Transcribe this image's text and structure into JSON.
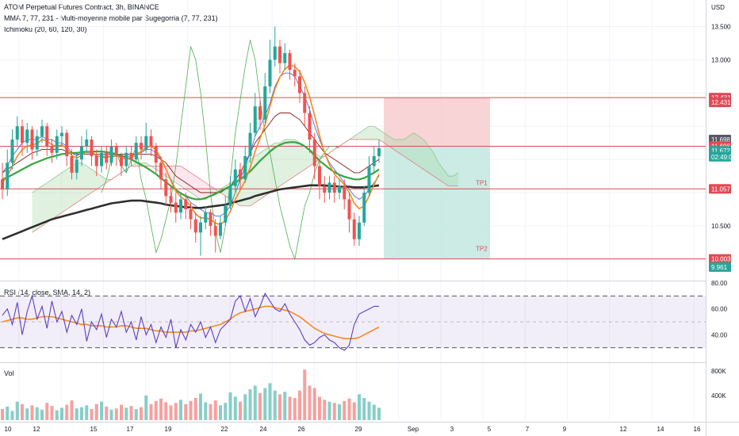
{
  "header": {
    "symbol_line": "ATOM Perpetual Futures Contract, 3h, BINANCE",
    "mma_line": "MMA 7, 77, 231 - Multi-moyenne mobile par Sugegorria (7, 77, 231)",
    "ichimoku_line": "Ichimoku (20, 60, 120, 30)"
  },
  "rsi_label": "RSI (14, close, SMA, 14, 2)",
  "vol_label": "Vol",
  "currency": "USD",
  "colors": {
    "bull": "#26a69a",
    "bear": "#ef5350",
    "ma_fast": "#f5891f",
    "ma_mid": "#3aa341",
    "ma_slow": "#2f2f2f",
    "tenkan": "#4a6fd8",
    "kijun": "#8a1c1c",
    "chikou": "#4caf50",
    "rsi": "#5b3fbf",
    "rsi_ma": "#f5891f",
    "level": "#e04a55",
    "stop_zone": "#f7c9cc",
    "target_zone": "#bfe6df"
  },
  "price_axis": {
    "ticks": [
      "13.500",
      "13.000",
      "10.500"
    ],
    "badges": [
      {
        "text": "12.431",
        "price": 12.431,
        "color": "#e04a55"
      },
      {
        "text": "12.431",
        "price": 12.36,
        "color": "#e04a55"
      },
      {
        "text": "11.698",
        "price": 11.8,
        "color": "#555a63"
      },
      {
        "text": "11.698",
        "price": 11.7,
        "color": "#e04a55"
      },
      {
        "text": "11.672",
        "price": 11.63,
        "color": "#26a69a"
      },
      {
        "text": "02:49:09",
        "price": 11.54,
        "color": "#26a69a"
      },
      {
        "text": "11.057",
        "price": 11.057,
        "color": "#e04a55"
      },
      {
        "text": "10.003",
        "price": 10.003,
        "color": "#e04a55"
      },
      {
        "text": "9.961",
        "price": 9.88,
        "color": "#26a69a"
      }
    ]
  },
  "rsi_axis": {
    "ticks": [
      "80.00",
      "60.00",
      "40.00"
    ]
  },
  "vol_axis": {
    "ticks": [
      "800K",
      "400K"
    ]
  },
  "time_axis": [
    "10",
    "12",
    "15",
    "17",
    "19",
    "22",
    "24",
    "26",
    "29",
    "Sep",
    "3",
    "5",
    "7",
    "9",
    "12",
    "14",
    "16"
  ],
  "annotations": {
    "tp1": "TP1",
    "tp2": "TP2"
  },
  "chart_data": {
    "type": "candlestick",
    "title": "ATOM Perpetual Futures Contract, 3h, BINANCE",
    "price_ylim": [
      9.7,
      13.9
    ],
    "rsi_ylim": [
      20,
      80
    ],
    "rsi_bands": [
      70,
      50,
      30
    ],
    "vol_ylim": [
      0,
      900000
    ],
    "levels": [
      12.431,
      11.698,
      11.057,
      10.003
    ],
    "position": {
      "entry": 11.698,
      "stop": 12.431,
      "tp1": 11.057,
      "tp2": 10.003
    },
    "candles": [
      [
        11.2,
        11.05,
        11.45,
        10.9
      ],
      [
        11.05,
        11.45,
        11.65,
        10.95
      ],
      [
        11.45,
        11.8,
        11.95,
        11.35
      ],
      [
        11.8,
        12.0,
        12.15,
        11.7
      ],
      [
        12.0,
        11.75,
        12.1,
        11.55
      ],
      [
        11.75,
        11.95,
        12.05,
        11.6
      ],
      [
        11.95,
        11.65,
        12.0,
        11.5
      ],
      [
        11.65,
        11.85,
        11.95,
        11.55
      ],
      [
        11.85,
        12.0,
        12.1,
        11.75
      ],
      [
        12.0,
        11.7,
        12.05,
        11.55
      ],
      [
        11.7,
        11.6,
        11.8,
        11.45
      ],
      [
        11.6,
        11.85,
        11.95,
        11.5
      ],
      [
        11.85,
        11.9,
        12.0,
        11.7
      ],
      [
        11.9,
        11.55,
        11.95,
        11.4
      ],
      [
        11.55,
        11.3,
        11.65,
        11.2
      ],
      [
        11.3,
        11.5,
        11.6,
        11.2
      ],
      [
        11.5,
        11.7,
        11.85,
        11.4
      ],
      [
        11.7,
        11.8,
        11.95,
        11.6
      ],
      [
        11.8,
        11.55,
        11.85,
        11.4
      ],
      [
        11.55,
        11.4,
        11.65,
        11.25
      ],
      [
        11.4,
        11.6,
        11.7,
        11.3
      ],
      [
        11.6,
        11.45,
        11.7,
        11.35
      ],
      [
        11.45,
        11.7,
        11.8,
        11.4
      ],
      [
        11.7,
        11.55,
        11.75,
        11.4
      ],
      [
        11.55,
        11.4,
        11.6,
        11.25
      ],
      [
        11.4,
        11.6,
        11.7,
        11.3
      ],
      [
        11.6,
        11.5,
        11.7,
        11.4
      ],
      [
        11.5,
        11.75,
        11.85,
        11.45
      ],
      [
        11.75,
        11.65,
        11.85,
        11.5
      ],
      [
        11.65,
        11.85,
        12.05,
        11.6
      ],
      [
        11.85,
        11.7,
        11.95,
        11.55
      ],
      [
        11.7,
        11.45,
        11.75,
        11.3
      ],
      [
        11.45,
        11.2,
        11.55,
        11.05
      ],
      [
        11.2,
        10.95,
        11.3,
        10.8
      ],
      [
        10.95,
        10.85,
        11.1,
        10.7
      ],
      [
        10.85,
        10.7,
        11.0,
        10.55
      ],
      [
        10.7,
        10.9,
        11.0,
        10.6
      ],
      [
        10.9,
        10.75,
        11.0,
        10.6
      ],
      [
        10.75,
        10.6,
        10.85,
        10.45
      ],
      [
        10.6,
        10.4,
        10.7,
        10.25
      ],
      [
        10.4,
        10.55,
        10.65,
        10.05
      ],
      [
        10.55,
        10.7,
        10.8,
        10.45
      ],
      [
        10.7,
        10.5,
        10.75,
        10.35
      ],
      [
        10.5,
        10.35,
        10.6,
        10.1
      ],
      [
        10.35,
        10.55,
        10.65,
        10.3
      ],
      [
        10.55,
        10.8,
        10.95,
        10.5
      ],
      [
        10.8,
        11.1,
        11.25,
        10.75
      ],
      [
        11.1,
        11.35,
        11.5,
        11.0
      ],
      [
        11.35,
        11.2,
        11.45,
        11.05
      ],
      [
        11.2,
        11.55,
        11.7,
        11.15
      ],
      [
        11.55,
        11.9,
        12.05,
        11.45
      ],
      [
        11.9,
        12.3,
        12.5,
        11.85
      ],
      [
        12.3,
        12.1,
        12.4,
        11.95
      ],
      [
        12.1,
        12.6,
        12.8,
        12.05
      ],
      [
        12.6,
        13.0,
        13.3,
        12.5
      ],
      [
        13.0,
        13.2,
        13.5,
        12.9
      ],
      [
        13.2,
        12.95,
        13.3,
        12.8
      ],
      [
        12.95,
        13.1,
        13.25,
        12.85
      ],
      [
        13.1,
        12.85,
        13.15,
        12.7
      ],
      [
        12.85,
        12.75,
        12.95,
        12.6
      ],
      [
        12.75,
        12.5,
        12.85,
        12.35
      ],
      [
        12.5,
        12.2,
        12.6,
        12.0
      ],
      [
        12.2,
        11.8,
        12.3,
        11.6
      ],
      [
        11.8,
        11.4,
        11.9,
        11.2
      ],
      [
        11.4,
        11.1,
        11.5,
        10.9
      ],
      [
        11.1,
        11.0,
        11.25,
        10.85
      ],
      [
        11.0,
        11.15,
        11.25,
        10.9
      ],
      [
        11.15,
        11.0,
        11.25,
        10.85
      ],
      [
        11.0,
        11.1,
        11.2,
        10.9
      ],
      [
        11.1,
        10.9,
        11.2,
        10.75
      ],
      [
        10.9,
        10.6,
        11.0,
        10.4
      ],
      [
        10.6,
        10.3,
        10.7,
        10.2
      ],
      [
        10.3,
        10.55,
        10.65,
        10.2
      ],
      [
        10.55,
        11.0,
        11.1,
        10.5
      ],
      [
        11.0,
        11.4,
        11.55,
        10.95
      ],
      [
        11.4,
        11.55,
        11.7,
        11.3
      ],
      [
        11.55,
        11.67,
        11.8,
        11.45
      ]
    ],
    "ma_fast": [
      11.15,
      11.25,
      11.4,
      11.55,
      11.65,
      11.7,
      11.72,
      11.74,
      11.8,
      11.78,
      11.72,
      11.7,
      11.72,
      11.66,
      11.56,
      11.52,
      11.56,
      11.62,
      11.62,
      11.56,
      11.54,
      11.52,
      11.56,
      11.56,
      11.52,
      11.52,
      11.52,
      11.58,
      11.62,
      11.68,
      11.7,
      11.64,
      11.52,
      11.36,
      11.18,
      11.02,
      10.94,
      10.88,
      10.8,
      10.68,
      10.62,
      10.62,
      10.6,
      10.54,
      10.52,
      10.58,
      10.72,
      10.9,
      11.04,
      11.18,
      11.38,
      11.62,
      11.82,
      12.02,
      12.3,
      12.56,
      12.74,
      12.86,
      12.92,
      12.9,
      12.82,
      12.66,
      12.44,
      12.16,
      11.86,
      11.6,
      11.42,
      11.28,
      11.2,
      11.12,
      11.0,
      10.84,
      10.76,
      10.8,
      10.95,
      11.12,
      11.28
    ],
    "ma_mid": [
      11.2,
      11.23,
      11.27,
      11.31,
      11.35,
      11.39,
      11.43,
      11.46,
      11.49,
      11.52,
      11.54,
      11.56,
      11.58,
      11.59,
      11.6,
      11.6,
      11.61,
      11.62,
      11.62,
      11.62,
      11.62,
      11.61,
      11.6,
      11.58,
      11.56,
      11.53,
      11.5,
      11.46,
      11.42,
      11.38,
      11.33,
      11.28,
      11.22,
      11.16,
      11.1,
      11.04,
      10.99,
      10.95,
      10.92,
      10.9,
      10.9,
      10.92,
      10.95,
      10.98,
      11.02,
      11.06,
      11.1,
      11.15,
      11.2,
      11.26,
      11.32,
      11.4,
      11.48,
      11.55,
      11.62,
      11.68,
      11.72,
      11.75,
      11.76,
      11.76,
      11.74,
      11.7,
      11.64,
      11.56,
      11.48,
      11.42,
      11.36,
      11.31,
      11.27,
      11.24,
      11.22,
      11.2,
      11.2,
      11.22,
      11.26,
      11.3,
      11.35
    ],
    "ma_slow": [
      10.3,
      10.33,
      10.36,
      10.39,
      10.42,
      10.45,
      10.48,
      10.51,
      10.54,
      10.57,
      10.6,
      10.62,
      10.64,
      10.66,
      10.68,
      10.7,
      10.72,
      10.74,
      10.76,
      10.78,
      10.8,
      10.82,
      10.84,
      10.85,
      10.86,
      10.87,
      10.88,
      10.88,
      10.88,
      10.87,
      10.86,
      10.85,
      10.84,
      10.82,
      10.81,
      10.8,
      10.79,
      10.78,
      10.78,
      10.77,
      10.77,
      10.78,
      10.79,
      10.8,
      10.81,
      10.82,
      10.84,
      10.86,
      10.88,
      10.9,
      10.92,
      10.95,
      10.97,
      10.99,
      11.01,
      11.03,
      11.05,
      11.06,
      11.07,
      11.08,
      11.09,
      11.1,
      11.11,
      11.11,
      11.11,
      11.11,
      11.1,
      11.1,
      11.09,
      11.09,
      11.09,
      11.08,
      11.08,
      11.08,
      11.09,
      11.1,
      11.11
    ],
    "rsi": [
      55,
      60,
      48,
      65,
      40,
      58,
      70,
      52,
      62,
      45,
      66,
      50,
      58,
      42,
      55,
      48,
      60,
      35,
      50,
      44,
      56,
      38,
      52,
      46,
      58,
      42,
      50,
      36,
      54,
      40,
      48,
      34,
      46,
      38,
      52,
      30,
      44,
      36,
      48,
      42,
      50,
      38,
      46,
      34,
      44,
      48,
      52,
      66,
      70,
      58,
      68,
      54,
      62,
      72,
      66,
      60,
      58,
      64,
      56,
      50,
      44,
      36,
      32,
      34,
      38,
      40,
      36,
      34,
      30,
      28,
      32,
      48,
      56,
      58,
      60,
      62,
      62
    ],
    "rsi_ma": [
      50,
      51,
      52,
      53,
      53,
      52,
      52,
      53,
      54,
      54,
      54,
      53,
      52,
      51,
      50,
      49,
      48,
      48,
      47,
      47,
      47,
      46,
      46,
      46,
      47,
      47,
      46,
      45,
      45,
      45,
      44,
      43,
      43,
      42,
      42,
      42,
      42,
      42,
      43,
      43,
      44,
      45,
      46,
      47,
      48,
      50,
      52,
      55,
      57,
      58,
      59,
      60,
      61,
      62,
      62,
      61,
      60,
      59,
      58,
      56,
      54,
      51,
      48,
      45,
      43,
      41,
      40,
      39,
      38,
      37,
      37,
      37,
      38,
      40,
      42,
      44,
      46
    ],
    "volume": [
      180000,
      220000,
      150000,
      300000,
      260000,
      190000,
      240000,
      210000,
      170000,
      280000,
      230000,
      160000,
      200000,
      250000,
      320000,
      190000,
      210000,
      240000,
      180000,
      260000,
      300000,
      220000,
      170000,
      190000,
      250000,
      200000,
      230000,
      180000,
      210000,
      400000,
      260000,
      310000,
      350000,
      290000,
      240000,
      280000,
      330000,
      260000,
      310000,
      360000,
      430000,
      290000,
      260000,
      320000,
      240000,
      280000,
      450000,
      380000,
      300000,
      420000,
      500000,
      560000,
      440000,
      520000,
      600000,
      480000,
      420000,
      460000,
      380000,
      360000,
      480000,
      820000,
      560000,
      520000,
      380000,
      330000,
      300000,
      280000,
      260000,
      310000,
      350000,
      290000,
      420000,
      360000,
      300000,
      250000,
      200000
    ],
    "ichimoku": {
      "tenkan": [
        11.3,
        11.4,
        11.55,
        11.65,
        11.75,
        11.8,
        11.8,
        11.8,
        11.85,
        11.8,
        11.8,
        11.75,
        11.75,
        11.7,
        11.6,
        11.55,
        11.6,
        11.6,
        11.6,
        11.55,
        11.55,
        11.55,
        11.55,
        11.55,
        11.55,
        11.55,
        11.55,
        11.6,
        11.6,
        11.65,
        11.65,
        11.6,
        11.5,
        11.35,
        11.2,
        11.05,
        11.0,
        10.95,
        10.85,
        10.8,
        10.75,
        10.7,
        10.7,
        10.65,
        10.65,
        10.7,
        10.8,
        11.0,
        11.2,
        11.4,
        11.6,
        11.85,
        12.0,
        12.15,
        12.35,
        12.6,
        12.75,
        12.8,
        12.8,
        12.75,
        12.6,
        12.45,
        12.25,
        12.0,
        11.8,
        11.6,
        11.45,
        11.35,
        11.25,
        11.15,
        11.05,
        10.95,
        10.9,
        10.95,
        11.05,
        11.15,
        11.25
      ],
      "kijun": [
        11.3,
        11.35,
        11.4,
        11.45,
        11.5,
        11.55,
        11.6,
        11.62,
        11.65,
        11.65,
        11.65,
        11.65,
        11.65,
        11.62,
        11.6,
        11.58,
        11.58,
        11.58,
        11.58,
        11.58,
        11.58,
        11.58,
        11.58,
        11.58,
        11.58,
        11.58,
        11.58,
        11.58,
        11.58,
        11.58,
        11.58,
        11.55,
        11.5,
        11.45,
        11.35,
        11.25,
        11.2,
        11.15,
        11.1,
        11.05,
        11.0,
        11.0,
        11.0,
        11.0,
        11.0,
        11.05,
        11.1,
        11.2,
        11.3,
        11.45,
        11.6,
        11.75,
        11.85,
        11.95,
        12.05,
        12.15,
        12.2,
        12.2,
        12.2,
        12.15,
        12.1,
        12.0,
        11.9,
        11.8,
        11.7,
        11.6,
        11.55,
        11.5,
        11.45,
        11.4,
        11.35,
        11.3,
        11.3,
        11.35,
        11.4,
        11.45,
        11.5
      ],
      "span_a": [
        11.0,
        11.05,
        11.1,
        11.15,
        11.2,
        11.25,
        11.3,
        11.35,
        11.4,
        11.45,
        11.45,
        11.4,
        11.35,
        11.3,
        11.25,
        11.2,
        11.2,
        11.25,
        11.3,
        11.35,
        11.4,
        11.45,
        11.45,
        11.45,
        11.4,
        11.35,
        11.3,
        11.25,
        11.2,
        11.15,
        11.1,
        11.05,
        11.0,
        10.95,
        10.9,
        10.9,
        10.95,
        11.0,
        11.05,
        11.1,
        11.15,
        11.2,
        11.3,
        11.4,
        11.5,
        11.55,
        11.6,
        11.65,
        11.7,
        11.75,
        11.75,
        11.8,
        11.8,
        11.8,
        11.75,
        11.7,
        11.65,
        11.6,
        11.55,
        11.55,
        11.6,
        11.65,
        11.7,
        11.75,
        11.8,
        11.85,
        11.9,
        11.95,
        12.0,
        12.0,
        11.95,
        11.9,
        11.85,
        11.8,
        11.8,
        11.8,
        11.85,
        11.9,
        11.85,
        11.8,
        11.7,
        11.6,
        11.45,
        11.35,
        11.25,
        11.25,
        11.3
      ],
      "span_b": [
        10.4,
        10.45,
        10.5,
        10.55,
        10.6,
        10.65,
        10.7,
        10.75,
        10.8,
        10.85,
        10.9,
        10.95,
        11.0,
        11.05,
        11.1,
        11.15,
        11.2,
        11.25,
        11.3,
        11.35,
        11.4,
        11.4,
        11.4,
        11.4,
        11.4,
        11.4,
        11.4,
        11.4,
        11.4,
        11.4,
        11.4,
        11.35,
        11.3,
        11.25,
        11.2,
        11.15,
        11.1,
        11.05,
        11.0,
        10.95,
        10.9,
        10.85,
        10.8,
        10.8,
        10.8,
        10.85,
        10.9,
        10.95,
        11.0,
        11.05,
        11.1,
        11.15,
        11.2,
        11.25,
        11.3,
        11.35,
        11.4,
        11.45,
        11.5,
        11.55,
        11.6,
        11.65,
        11.7,
        11.75,
        11.8,
        11.8,
        11.8,
        11.8,
        11.8,
        11.8,
        11.8,
        11.75,
        11.7,
        11.65,
        11.6,
        11.55,
        11.5,
        11.45,
        11.4,
        11.35,
        11.3,
        11.25,
        11.2,
        11.15,
        11.1,
        11.1,
        11.1
      ],
      "chikou": [
        11.0,
        11.2,
        11.5,
        11.6,
        11.4,
        11.3,
        11.5,
        11.7,
        11.2,
        10.9,
        10.5,
        10.1,
        10.3,
        10.6,
        10.9,
        11.4,
        12.0,
        12.6,
        13.2,
        13.0,
        12.5,
        11.8,
        11.0,
        10.4,
        10.1,
        10.5,
        11.2,
        11.9,
        12.4,
        12.9,
        13.3,
        13.0,
        12.4,
        11.9,
        11.6,
        11.2,
        10.8,
        10.5,
        10.2,
        10.0,
        10.4,
        10.8,
        11.0,
        11.3,
        11.5,
        11.6,
        11.7,
        11.7,
        11.67
      ]
    }
  }
}
